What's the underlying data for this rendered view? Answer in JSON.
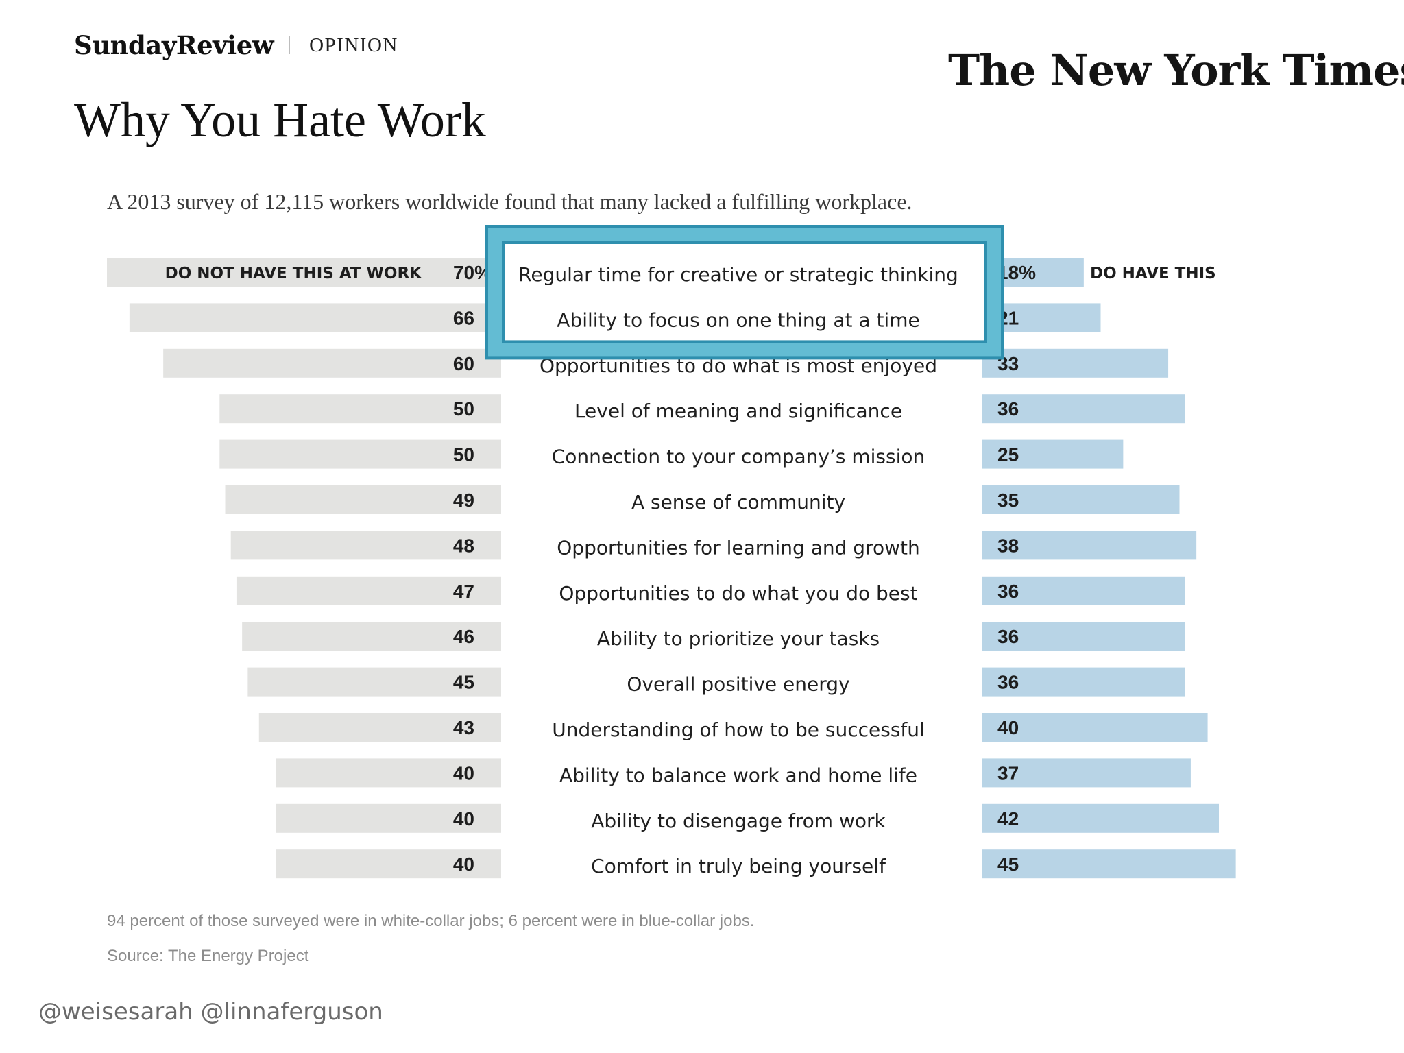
{
  "header": {
    "section": "SundayReview",
    "kicker": "OPINION",
    "title": "Why You Hate Work",
    "logo": "The New York Times"
  },
  "subtitle": "A 2013 survey of 12,115 workers worldwide found that many lacked a fulfilling workplace.",
  "footnote": "94 percent of those surveyed were in white-collar jobs; 6 percent were in blue-collar jobs.",
  "source": "Source: The Energy Project",
  "credit": "@weisesarah @linnaferguson",
  "colors": {
    "left_bar": "#e3e3e1",
    "right_bar": "#b8d4e6",
    "highlight_outer": "#2e8fae",
    "highlight_inner": "#63bcd3"
  },
  "chart_data": {
    "type": "bar",
    "layout": "diverging",
    "left_label": "DO NOT HAVE THIS AT WORK",
    "right_label": "DO HAVE THIS",
    "unit": "%",
    "xlim": [
      0,
      70
    ],
    "highlighted_categories": [
      0,
      1
    ],
    "categories": [
      "Regular time for creative or strategic thinking",
      "Ability to focus on one thing at a time",
      "Opportunities to do what is most enjoyed",
      "Level of meaning and significance",
      "Connection to your company’s mission",
      "A sense of community",
      "Opportunities for learning and growth",
      "Opportunities to do what you do best",
      "Ability to prioritize your tasks",
      "Overall positive energy",
      "Understanding of how to be successful",
      "Ability to balance work and home life",
      "Ability to disengage from work",
      "Comfort in truly being yourself"
    ],
    "series": [
      {
        "name": "Do not have this at work",
        "values": [
          70,
          66,
          60,
          50,
          50,
          49,
          48,
          47,
          46,
          45,
          43,
          40,
          40,
          40
        ]
      },
      {
        "name": "Do have this",
        "values": [
          18,
          21,
          33,
          36,
          25,
          35,
          38,
          36,
          36,
          36,
          40,
          37,
          42,
          45
        ]
      }
    ]
  }
}
